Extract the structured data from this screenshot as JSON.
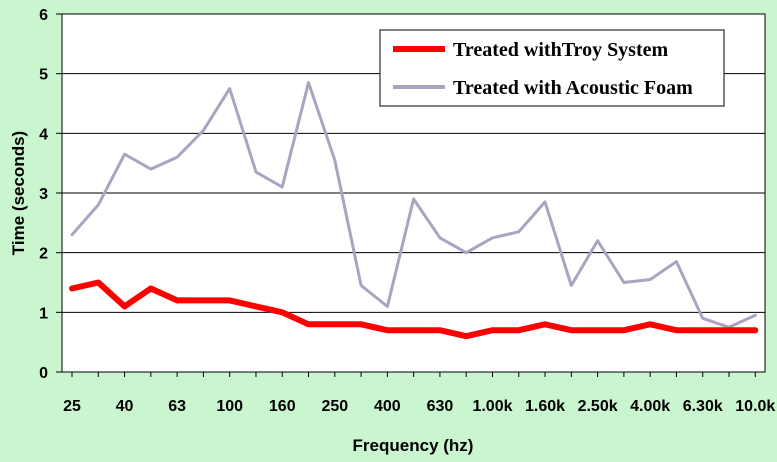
{
  "chart_data": {
    "type": "line",
    "title": "",
    "xlabel": "Frequency (hz)",
    "ylabel": "Time (seconds)",
    "ylim": [
      0,
      6
    ],
    "yticks": [
      0,
      1,
      2,
      3,
      4,
      5,
      6
    ],
    "grid": "horizontal",
    "legend_position": "top-right",
    "x": [
      "25",
      "31.5",
      "40",
      "50",
      "63",
      "80",
      "100",
      "125",
      "160",
      "200",
      "250",
      "315",
      "400",
      "500",
      "630",
      "800",
      "1.00k",
      "1.25k",
      "1.60k",
      "2.00k",
      "2.50k",
      "3.15k",
      "4.00k",
      "5.00k",
      "6.30k",
      "8.00k",
      "10.0k"
    ],
    "x_tick_labels": [
      "25",
      "40",
      "63",
      "100",
      "160",
      "250",
      "400",
      "630",
      "1.00k",
      "1.60k",
      "2.50k",
      "4.00k",
      "6.30k",
      "10.0k"
    ],
    "series": [
      {
        "name": "Treated withTroy System",
        "color": "#ff0000",
        "values": [
          1.4,
          1.5,
          1.1,
          1.4,
          1.2,
          1.2,
          1.2,
          1.1,
          1.0,
          0.8,
          0.8,
          0.8,
          0.7,
          0.7,
          0.7,
          0.6,
          0.7,
          0.7,
          0.8,
          0.7,
          0.7,
          0.7,
          0.8,
          0.7,
          0.7,
          0.7,
          0.7
        ]
      },
      {
        "name": "Treated with Acoustic Foam",
        "color": "#a6a6c0",
        "values": [
          2.3,
          2.8,
          3.65,
          3.4,
          3.6,
          4.05,
          4.75,
          3.35,
          3.1,
          4.85,
          3.55,
          1.45,
          1.1,
          2.9,
          2.25,
          2.0,
          2.25,
          2.35,
          2.85,
          1.45,
          2.2,
          1.5,
          1.55,
          1.85,
          0.9,
          0.75,
          0.95
        ]
      }
    ]
  }
}
